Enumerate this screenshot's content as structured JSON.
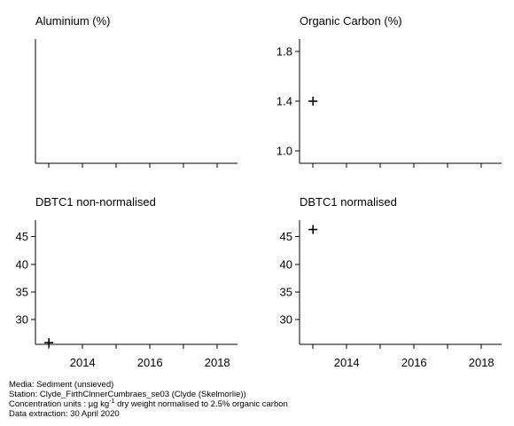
{
  "chart_data": [
    {
      "type": "scatter",
      "title": "Aluminium (%)",
      "xlim": [
        2012.6,
        2018.6
      ],
      "x_ticks": [
        2013,
        2014,
        2015,
        2016,
        2017,
        2018
      ],
      "x_tick_labels": [],
      "ylim": [
        0,
        1
      ],
      "y_ticks": [],
      "y_tick_labels": [],
      "series": [
        {
          "marker": "plus",
          "points": []
        }
      ]
    },
    {
      "type": "scatter",
      "title": "Organic Carbon (%)",
      "xlim": [
        2012.6,
        2018.6
      ],
      "x_ticks": [
        2013,
        2014,
        2015,
        2016,
        2017,
        2018
      ],
      "x_tick_labels": [],
      "ylim": [
        0.9,
        1.9
      ],
      "y_ticks": [
        1.0,
        1.4,
        1.8
      ],
      "y_tick_labels": [
        "1.0",
        "1.4",
        "1.8"
      ],
      "series": [
        {
          "marker": "plus",
          "points": [
            {
              "x": 2013,
              "y": 1.4
            }
          ]
        }
      ]
    },
    {
      "type": "scatter",
      "title": "DBTC1 non-normalised",
      "xlim": [
        2012.6,
        2018.6
      ],
      "x_ticks": [
        2013,
        2014,
        2015,
        2016,
        2017,
        2018
      ],
      "x_tick_labels": [
        "2014",
        "2016",
        "2018"
      ],
      "x_tick_label_values": [
        2014,
        2016,
        2018
      ],
      "ylim": [
        25.5,
        48
      ],
      "y_ticks": [
        30,
        35,
        40,
        45
      ],
      "y_tick_labels": [
        "30",
        "35",
        "40",
        "45"
      ],
      "series": [
        {
          "marker": "plus",
          "points": [
            {
              "x": 2013,
              "y": 25.8
            }
          ]
        }
      ]
    },
    {
      "type": "scatter",
      "title": "DBTC1 normalised",
      "xlim": [
        2012.6,
        2018.6
      ],
      "x_ticks": [
        2013,
        2014,
        2015,
        2016,
        2017,
        2018
      ],
      "x_tick_labels": [
        "2014",
        "2016",
        "2018"
      ],
      "x_tick_label_values": [
        2014,
        2016,
        2018
      ],
      "ylim": [
        25.5,
        48
      ],
      "y_ticks": [
        30,
        35,
        40,
        45
      ],
      "y_tick_labels": [
        "30",
        "35",
        "40",
        "45"
      ],
      "series": [
        {
          "marker": "plus",
          "points": [
            {
              "x": 2013,
              "y": 46.3
            }
          ]
        }
      ]
    }
  ],
  "footer": {
    "media": "Media: Sediment (unsieved)",
    "station": "Station: Clyde_FirthClnnerCumbraes_se03 (Clyde (Skelmorlie))",
    "units_prefix": "Concentration units : µg kg",
    "units_sup": "-1",
    "units_suffix": " dry weight normalised to 2.5% organic carbon",
    "extraction": "Data extraction: 30 April 2020"
  }
}
